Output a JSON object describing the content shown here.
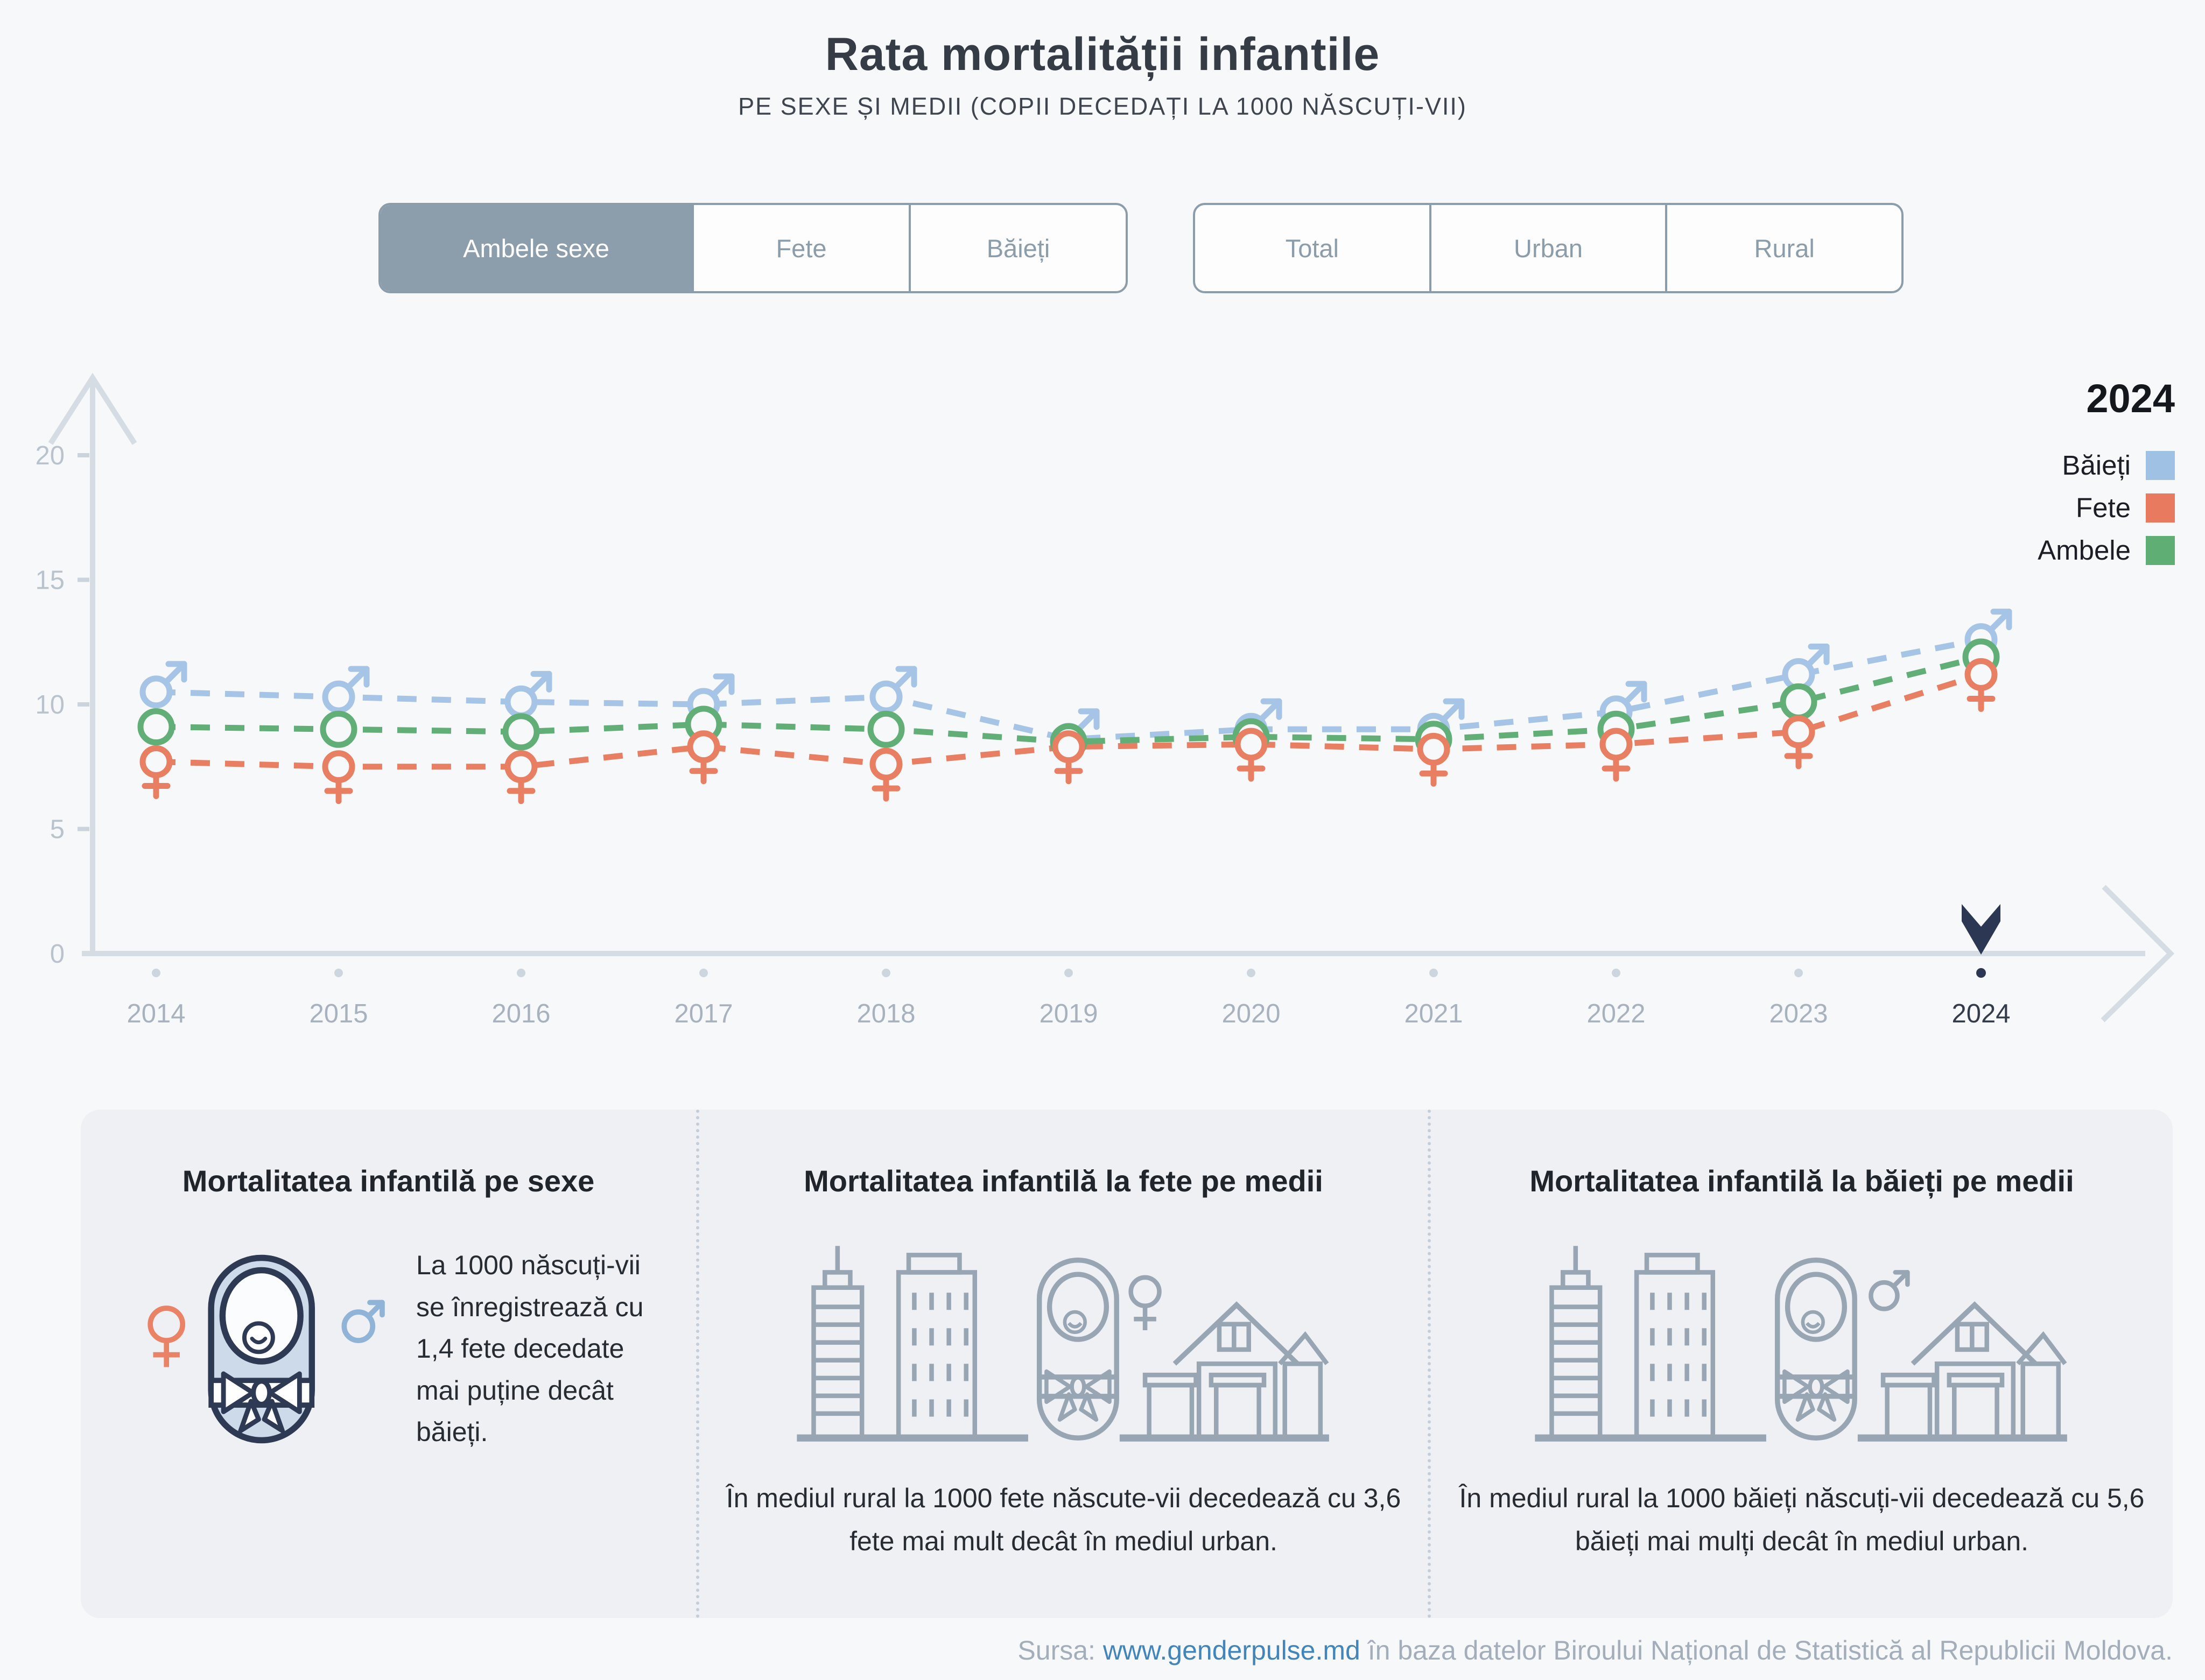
{
  "title": "Rata mortalității infantile",
  "subtitle": "PE SEXE ȘI MEDII (COPII DECEDAȚI LA 1000 NĂSCUȚI-VII)",
  "controls": {
    "sex": {
      "options": [
        {
          "label": "Ambele sexe",
          "active": true
        },
        {
          "label": "Fete",
          "active": false
        },
        {
          "label": "Băieți",
          "active": false
        }
      ]
    },
    "medium": {
      "options": [
        {
          "label": "Total",
          "active": false
        },
        {
          "label": "Urban",
          "active": false
        },
        {
          "label": "Rural",
          "active": false
        }
      ]
    }
  },
  "legend": {
    "year": "2024",
    "items": [
      {
        "label": "Băieți",
        "color": "#9fc1e3"
      },
      {
        "label": "Fete",
        "color": "#e87a5f"
      },
      {
        "label": "Ambele",
        "color": "#5fae74"
      }
    ]
  },
  "chart_data": {
    "type": "line",
    "title": "Rata mortalității infantile pe sexe, copii decedați la 1000 născuți-vii",
    "x": [
      2014,
      2015,
      2016,
      2017,
      2018,
      2019,
      2020,
      2021,
      2022,
      2023,
      2024
    ],
    "series": [
      {
        "name": "Băieți",
        "marker": "male",
        "color": "#a6c4e5",
        "values": [
          10.5,
          10.3,
          10.1,
          10.0,
          10.3,
          8.6,
          9.0,
          9.0,
          9.7,
          11.2,
          12.6
        ]
      },
      {
        "name": "Fete",
        "marker": "female",
        "color": "#e87f63",
        "values": [
          7.7,
          7.5,
          7.5,
          8.3,
          7.6,
          8.3,
          8.4,
          8.2,
          8.4,
          8.9,
          11.2
        ]
      },
      {
        "name": "Ambele",
        "marker": "circle",
        "color": "#61ae76",
        "values": [
          9.1,
          9.0,
          8.9,
          9.2,
          9.0,
          8.5,
          8.7,
          8.6,
          9.0,
          10.1,
          11.9
        ]
      }
    ],
    "yticks": [
      0,
      5,
      10,
      15,
      20
    ],
    "ylim": [
      0,
      22
    ],
    "grid": false,
    "legend_position": "top-right",
    "highlight_x": 2024
  },
  "cards": [
    {
      "heading": "Mortalitatea infantilă pe sexe",
      "text": "La 1000 născuți-vii se înregistrează cu 1,4 fete decedate mai puține decât băieți.",
      "icons": [
        "female-icon",
        "baby-icon",
        "male-icon"
      ]
    },
    {
      "heading": "Mortalitatea infantilă la fete pe medii",
      "text": "În mediul rural la 1000 fete născute-vii decedează cu 3,6 fete mai mult decât în mediul urban.",
      "icons": [
        "city-buildings-icon",
        "baby-icon",
        "female-icon",
        "houses-icon"
      ]
    },
    {
      "heading": "Mortalitatea infantilă la băieți pe medii",
      "text": "În mediul rural la 1000 băieți născuți-vii decedează cu 5,6 băieți mai mulți decât în mediul urban.",
      "icons": [
        "city-buildings-icon",
        "baby-icon",
        "male-icon",
        "houses-icon"
      ]
    }
  ],
  "footer": {
    "prefix": "Sursa: ",
    "link": "www.genderpulse.md",
    "suffix": " în baza datelor Biroului Național de Statistică al Republicii Moldova."
  }
}
